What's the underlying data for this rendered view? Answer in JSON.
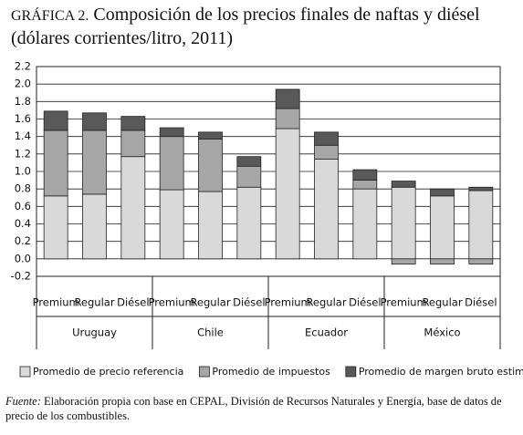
{
  "chart_data": {
    "type": "stacked-bar",
    "title_prefix": "GRÁFICA 2.",
    "title": "Composición de los precios finales de naftas y diésel (dólares corrientes/litro, 2011)",
    "groups": [
      {
        "name": "Uruguay",
        "categories": [
          "Premium",
          "Regular",
          "Diésel"
        ]
      },
      {
        "name": "Chile",
        "categories": [
          "Premium",
          "Regular",
          "Diésel"
        ]
      },
      {
        "name": "Ecuador",
        "categories": [
          "Premium",
          "Regular",
          "Diésel"
        ]
      },
      {
        "name": "México",
        "categories": [
          "Premium",
          "Regular",
          "Diésel"
        ]
      }
    ],
    "series": [
      {
        "name": "Promedio de precio referencia",
        "color": "#d9d9d9",
        "values": [
          0.72,
          0.74,
          1.17,
          0.79,
          0.77,
          0.82,
          1.49,
          1.14,
          0.8,
          0.82,
          0.72,
          0.78
        ]
      },
      {
        "name": "Promedio de impuestos",
        "color": "#a6a6a6",
        "values": [
          0.75,
          0.73,
          0.3,
          0.61,
          0.6,
          0.24,
          0.23,
          0.16,
          0.1,
          -0.06,
          -0.06,
          -0.06
        ]
      },
      {
        "name": "Promedio de margen bruto estimado",
        "color": "#595959",
        "values": [
          0.22,
          0.2,
          0.16,
          0.1,
          0.08,
          0.11,
          0.22,
          0.15,
          0.12,
          0.07,
          0.08,
          0.04
        ]
      }
    ],
    "ylim": [
      -0.2,
      2.2
    ],
    "yticks": [
      -0.2,
      {
        "value": 0,
        "label": "0.0"
      },
      0.2,
      0.4,
      0.6,
      0.8,
      {
        "value": 1,
        "label": "1.0"
      },
      1.2,
      1.4,
      1.6,
      1.8,
      {
        "value": 2,
        "label": "2.0"
      },
      2.2
    ],
    "grid": true,
    "source_label": "Fuente:",
    "source_text": "Elaboración propia con base en CEPAL, División de Recursos Naturales y Energía, base de datos de precio de los combustibles."
  }
}
